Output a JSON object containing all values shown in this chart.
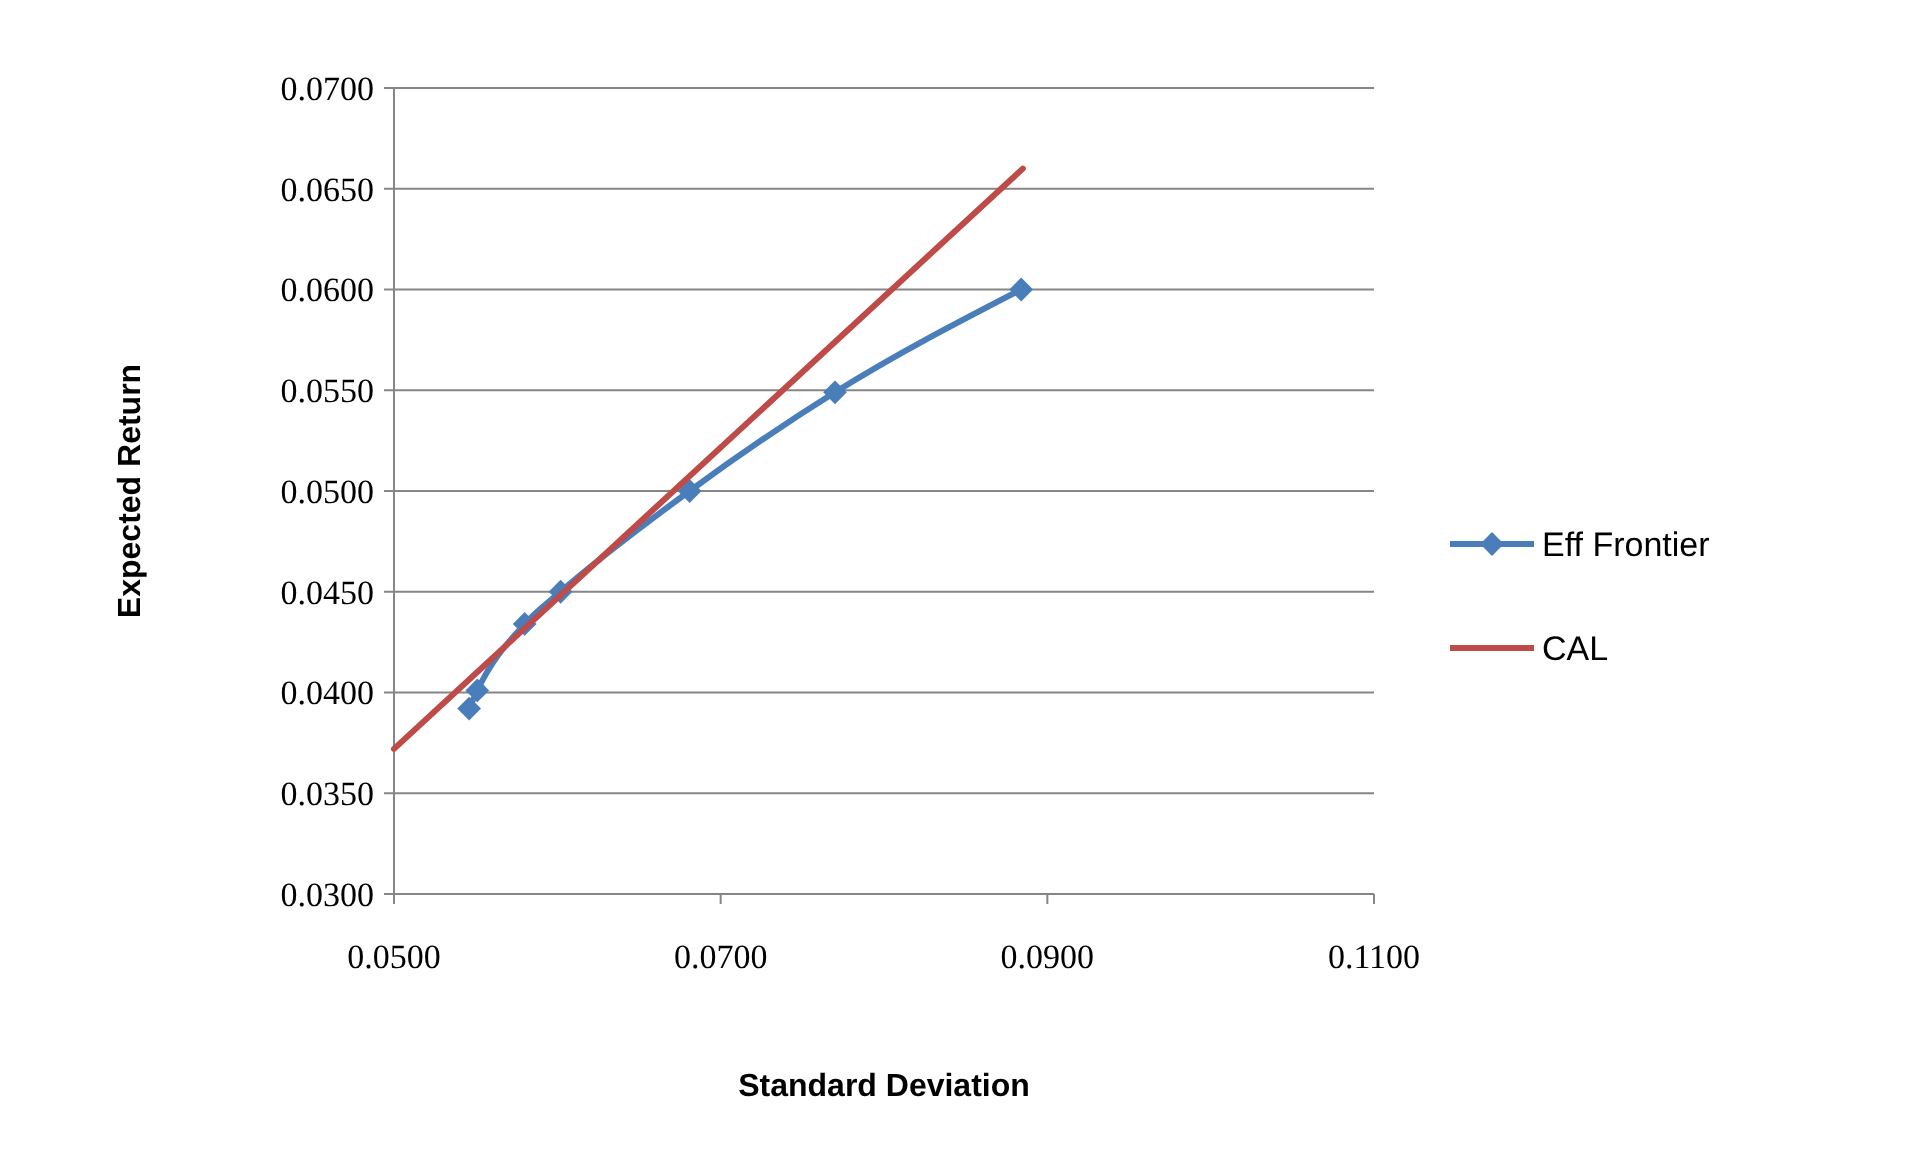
{
  "chart_data": {
    "type": "line",
    "xlabel": "Standard Deviation",
    "ylabel": "Expected Return",
    "xlim": [
      0.05,
      0.11
    ],
    "xticks": [
      {
        "value": 0.05,
        "label": "0.0500"
      },
      {
        "value": 0.07,
        "label": "0.0700"
      },
      {
        "value": 0.09,
        "label": "0.0900"
      },
      {
        "value": 0.11,
        "label": "0.1100"
      }
    ],
    "ylim": [
      0.03,
      0.07
    ],
    "yticks": [
      {
        "value": 0.03,
        "label": "0.0300"
      },
      {
        "value": 0.035,
        "label": "0.0350"
      },
      {
        "value": 0.04,
        "label": "0.0400"
      },
      {
        "value": 0.045,
        "label": "0.0450"
      },
      {
        "value": 0.05,
        "label": "0.0500"
      },
      {
        "value": 0.055,
        "label": "0.0550"
      },
      {
        "value": 0.06,
        "label": "0.0600"
      },
      {
        "value": 0.065,
        "label": "0.0650"
      },
      {
        "value": 0.07,
        "label": "0.0700"
      }
    ],
    "grid": "y",
    "legend": "right",
    "series": [
      {
        "name": "Eff Frontier",
        "color": "#4a7ebb",
        "marker": "diamond",
        "x": [
          0.0546,
          0.0551,
          0.058,
          0.0602,
          0.0681,
          0.077,
          0.0884
        ],
        "values": [
          0.0392,
          0.0401,
          0.0434,
          0.045,
          0.05,
          0.0549,
          0.06
        ]
      },
      {
        "name": "CAL",
        "color": "#be4b48",
        "marker": "none",
        "x": [
          0.05,
          0.0885
        ],
        "values": [
          0.0372,
          0.066
        ]
      }
    ]
  }
}
